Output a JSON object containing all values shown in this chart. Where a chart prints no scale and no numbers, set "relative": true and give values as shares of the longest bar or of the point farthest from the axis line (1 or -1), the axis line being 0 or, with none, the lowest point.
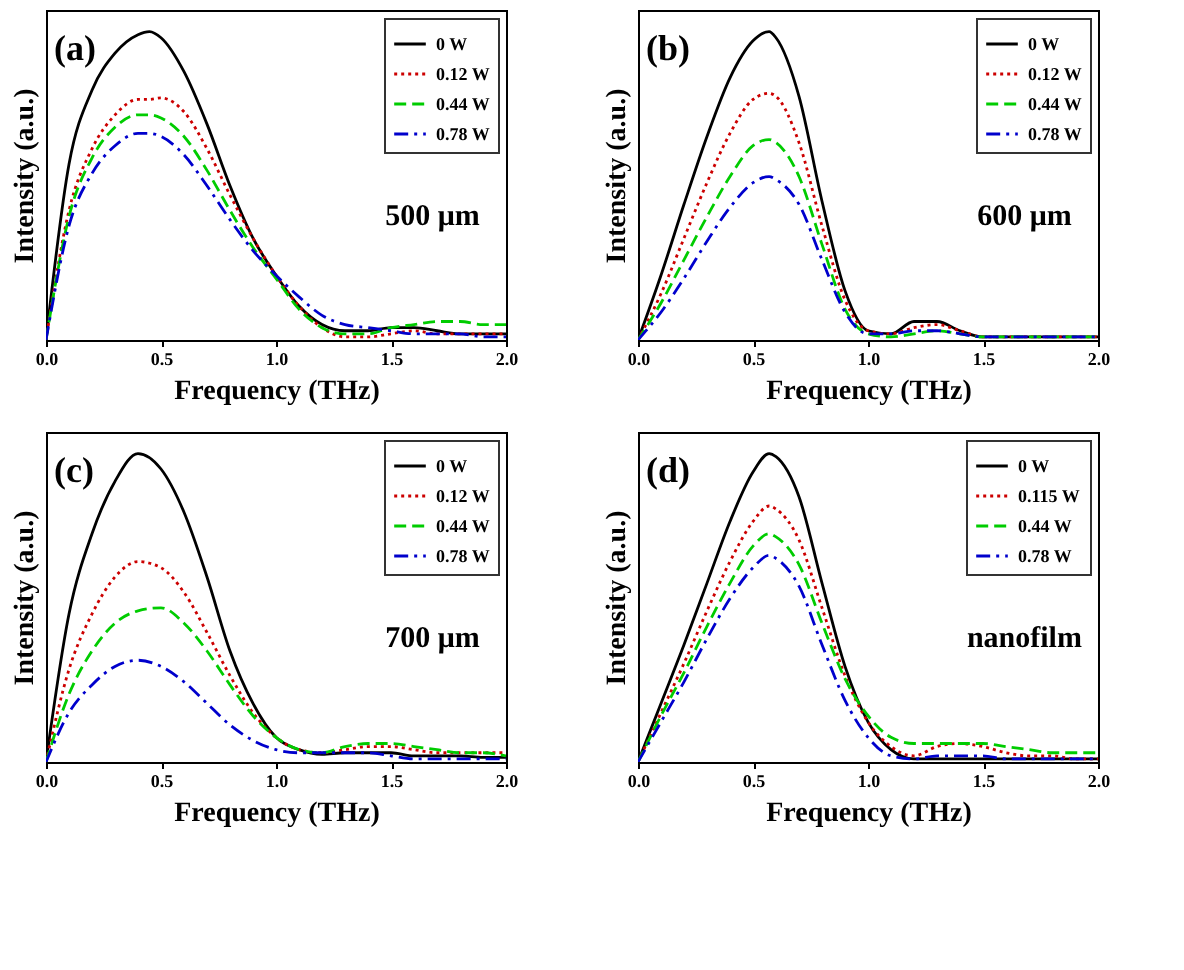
{
  "chart_data": [
    {
      "type": "line",
      "relative": true,
      "xlabel": "Frequency (THz)",
      "ylabel": "Intensity (a.u.)",
      "annotations": [
        "(a)",
        "500 μm"
      ],
      "legend": "top right",
      "xlim": [
        0,
        2
      ],
      "xticks": [
        {
          "value": 0,
          "label": "0.0"
        },
        {
          "value": 0.5,
          "label": "0.5"
        },
        {
          "value": 1,
          "label": "1.0"
        },
        {
          "value": 1.5,
          "label": "1.5"
        },
        {
          "value": 2,
          "label": "2.0"
        }
      ],
      "x": [
        0,
        0.1,
        0.2,
        0.3,
        0.4,
        0.45,
        0.5,
        0.6,
        0.7,
        0.8,
        0.9,
        1.0,
        1.1,
        1.2,
        1.3,
        1.4,
        1.5,
        1.6,
        1.7,
        1.8,
        1.9,
        2.0
      ],
      "series": [
        {
          "name": "0 W",
          "color": "#000000",
          "line_style": "solid",
          "values": [
            0,
            0.57,
            0.81,
            0.93,
            0.99,
            1,
            0.98,
            0.87,
            0.7,
            0.5,
            0.33,
            0.21,
            0.11,
            0.05,
            0.03,
            0.03,
            0.04,
            0.04,
            0.03,
            0.02,
            0.02,
            0.02
          ]
        },
        {
          "name": "0.12 W",
          "color": "#cc0000",
          "line_style": "dotted",
          "values": [
            0,
            0.42,
            0.62,
            0.73,
            0.78,
            0.78,
            0.785,
            0.74,
            0.62,
            0.47,
            0.33,
            0.21,
            0.11,
            0.04,
            0.01,
            0.01,
            0.02,
            0.03,
            0.02,
            0.02,
            0.02,
            0.02
          ]
        },
        {
          "name": "0.44 W",
          "color": "#00cc00",
          "line_style": "dashed",
          "values": [
            0,
            0.4,
            0.59,
            0.69,
            0.73,
            0.73,
            0.72,
            0.66,
            0.55,
            0.42,
            0.3,
            0.2,
            0.1,
            0.04,
            0.02,
            0.02,
            0.04,
            0.05,
            0.06,
            0.06,
            0.05,
            0.05
          ]
        },
        {
          "name": "0.78 W",
          "color": "#0000cc",
          "line_style": "dashdot",
          "values": [
            0,
            0.37,
            0.54,
            0.63,
            0.67,
            0.67,
            0.66,
            0.6,
            0.5,
            0.39,
            0.29,
            0.21,
            0.14,
            0.08,
            0.05,
            0.04,
            0.03,
            0.02,
            0.02,
            0.02,
            0.01,
            0.01
          ]
        }
      ]
    },
    {
      "type": "line",
      "relative": true,
      "xlabel": "Frequency (THz)",
      "ylabel": "Intensity (a.u.)",
      "annotations": [
        "(b)",
        "600 μm"
      ],
      "legend": "top right",
      "xlim": [
        0,
        2
      ],
      "xticks": [
        {
          "value": 0,
          "label": "0.0"
        },
        {
          "value": 0.5,
          "label": "0.5"
        },
        {
          "value": 1,
          "label": "1.0"
        },
        {
          "value": 1.5,
          "label": "1.5"
        },
        {
          "value": 2,
          "label": "2.0"
        }
      ],
      "x": [
        0,
        0.1,
        0.2,
        0.3,
        0.4,
        0.5,
        0.57,
        0.6,
        0.7,
        0.8,
        0.9,
        1.0,
        1.1,
        1.2,
        1.3,
        1.4,
        1.5,
        1.6,
        1.7,
        1.8,
        1.9,
        2.0
      ],
      "series": [
        {
          "name": "0 W",
          "color": "#000000",
          "line_style": "solid",
          "values": [
            0,
            0.21,
            0.44,
            0.66,
            0.85,
            0.97,
            1,
            0.98,
            0.79,
            0.45,
            0.16,
            0.03,
            0.02,
            0.06,
            0.06,
            0.03,
            0.01,
            0.01,
            0.01,
            0.01,
            0.01,
            0.01
          ]
        },
        {
          "name": "0.12 W",
          "color": "#cc0000",
          "line_style": "dotted",
          "values": [
            0,
            0.15,
            0.33,
            0.51,
            0.67,
            0.78,
            0.8,
            0.79,
            0.64,
            0.37,
            0.13,
            0.03,
            0.02,
            0.04,
            0.05,
            0.03,
            0.01,
            0.01,
            0.01,
            0.01,
            0.01,
            0.01
          ]
        },
        {
          "name": "0.44 W",
          "color": "#00cc00",
          "line_style": "dashed",
          "values": [
            0,
            0.12,
            0.26,
            0.4,
            0.53,
            0.63,
            0.65,
            0.64,
            0.53,
            0.31,
            0.1,
            0.02,
            0.01,
            0.02,
            0.03,
            0.02,
            0.01,
            0.01,
            0.01,
            0.01,
            0.01,
            0.01
          ]
        },
        {
          "name": "0.78 W",
          "color": "#0000cc",
          "line_style": "dashdot",
          "values": [
            0,
            0.09,
            0.2,
            0.32,
            0.43,
            0.51,
            0.53,
            0.52,
            0.44,
            0.26,
            0.09,
            0.02,
            0.02,
            0.03,
            0.03,
            0.02,
            0.01,
            0.01,
            0.01,
            0.01,
            0.01,
            0.01
          ]
        }
      ]
    },
    {
      "type": "line",
      "relative": true,
      "xlabel": "Frequency (THz)",
      "ylabel": "Intensity (a.u.)",
      "annotations": [
        "(c)",
        "700 μm"
      ],
      "legend": "top right",
      "xlim": [
        0,
        2
      ],
      "xticks": [
        {
          "value": 0,
          "label": "0.0"
        },
        {
          "value": 0.5,
          "label": "0.5"
        },
        {
          "value": 1,
          "label": "1.0"
        },
        {
          "value": 1.5,
          "label": "1.5"
        },
        {
          "value": 2,
          "label": "2.0"
        }
      ],
      "x": [
        0,
        0.1,
        0.2,
        0.3,
        0.4,
        0.5,
        0.6,
        0.7,
        0.8,
        0.9,
        1.0,
        1.1,
        1.2,
        1.3,
        1.4,
        1.5,
        1.6,
        1.7,
        1.8,
        1.9,
        2.0
      ],
      "series": [
        {
          "name": "0 W",
          "color": "#000000",
          "line_style": "solid",
          "values": [
            0,
            0.48,
            0.74,
            0.91,
            1,
            0.95,
            0.81,
            0.6,
            0.36,
            0.19,
            0.08,
            0.04,
            0.025,
            0.03,
            0.03,
            0.03,
            0.02,
            0.02,
            0.02,
            0.015,
            0.015
          ]
        },
        {
          "name": "0.12 W",
          "color": "#cc0000",
          "line_style": "dotted",
          "values": [
            0,
            0.3,
            0.48,
            0.6,
            0.65,
            0.63,
            0.55,
            0.42,
            0.28,
            0.16,
            0.08,
            0.04,
            0.03,
            0.04,
            0.05,
            0.05,
            0.04,
            0.03,
            0.03,
            0.03,
            0.03
          ]
        },
        {
          "name": "0.44 W",
          "color": "#00cc00",
          "line_style": "dashed",
          "values": [
            0,
            0.22,
            0.36,
            0.45,
            0.49,
            0.5,
            0.45,
            0.36,
            0.25,
            0.15,
            0.08,
            0.04,
            0.03,
            0.05,
            0.06,
            0.06,
            0.05,
            0.04,
            0.03,
            0.03,
            0.02
          ]
        },
        {
          "name": "0.78 W",
          "color": "#0000cc",
          "line_style": "dashdot",
          "values": [
            0,
            0.16,
            0.25,
            0.31,
            0.33,
            0.31,
            0.26,
            0.19,
            0.12,
            0.07,
            0.04,
            0.03,
            0.03,
            0.03,
            0.03,
            0.02,
            0.01,
            0.01,
            0.01,
            0.01,
            0.01
          ]
        }
      ]
    },
    {
      "type": "line",
      "relative": true,
      "xlabel": "Frequency (THz)",
      "ylabel": "Intensity (a.u.)",
      "annotations": [
        "(d)",
        "nanofilm"
      ],
      "legend": "top right",
      "xlim": [
        0,
        2
      ],
      "xticks": [
        {
          "value": 0,
          "label": "0.0"
        },
        {
          "value": 0.5,
          "label": "0.5"
        },
        {
          "value": 1,
          "label": "1.0"
        },
        {
          "value": 1.5,
          "label": "1.5"
        },
        {
          "value": 2,
          "label": "2.0"
        }
      ],
      "x": [
        0,
        0.1,
        0.2,
        0.3,
        0.4,
        0.5,
        0.57,
        0.6,
        0.7,
        0.8,
        0.9,
        1.0,
        1.1,
        1.2,
        1.3,
        1.4,
        1.5,
        1.6,
        1.7,
        1.8,
        1.9,
        2.0
      ],
      "series": [
        {
          "name": "0 W",
          "color": "#000000",
          "line_style": "solid",
          "values": [
            0,
            0.19,
            0.38,
            0.58,
            0.78,
            0.94,
            1,
            0.99,
            0.86,
            0.58,
            0.31,
            0.13,
            0.04,
            0.01,
            0.01,
            0.01,
            0.01,
            0.01,
            0.01,
            0.01,
            0.01,
            0.01
          ]
        },
        {
          "name": "0.115 W",
          "color": "#cc0000",
          "line_style": "dotted",
          "values": [
            0,
            0.16,
            0.32,
            0.49,
            0.65,
            0.78,
            0.83,
            0.82,
            0.72,
            0.5,
            0.28,
            0.13,
            0.05,
            0.02,
            0.05,
            0.06,
            0.05,
            0.03,
            0.02,
            0.02,
            0.01,
            0.01
          ]
        },
        {
          "name": "0.44 W",
          "color": "#00cc00",
          "line_style": "dashed",
          "values": [
            0,
            0.15,
            0.29,
            0.44,
            0.58,
            0.7,
            0.74,
            0.73,
            0.64,
            0.45,
            0.27,
            0.15,
            0.08,
            0.06,
            0.06,
            0.06,
            0.06,
            0.05,
            0.04,
            0.03,
            0.03,
            0.03
          ]
        },
        {
          "name": "0.78 W",
          "color": "#0000cc",
          "line_style": "dashdot",
          "values": [
            0,
            0.13,
            0.26,
            0.4,
            0.53,
            0.63,
            0.67,
            0.66,
            0.57,
            0.38,
            0.2,
            0.08,
            0.02,
            0.01,
            0.02,
            0.02,
            0.02,
            0.01,
            0.01,
            0.01,
            0.01,
            0.01
          ]
        }
      ]
    }
  ]
}
